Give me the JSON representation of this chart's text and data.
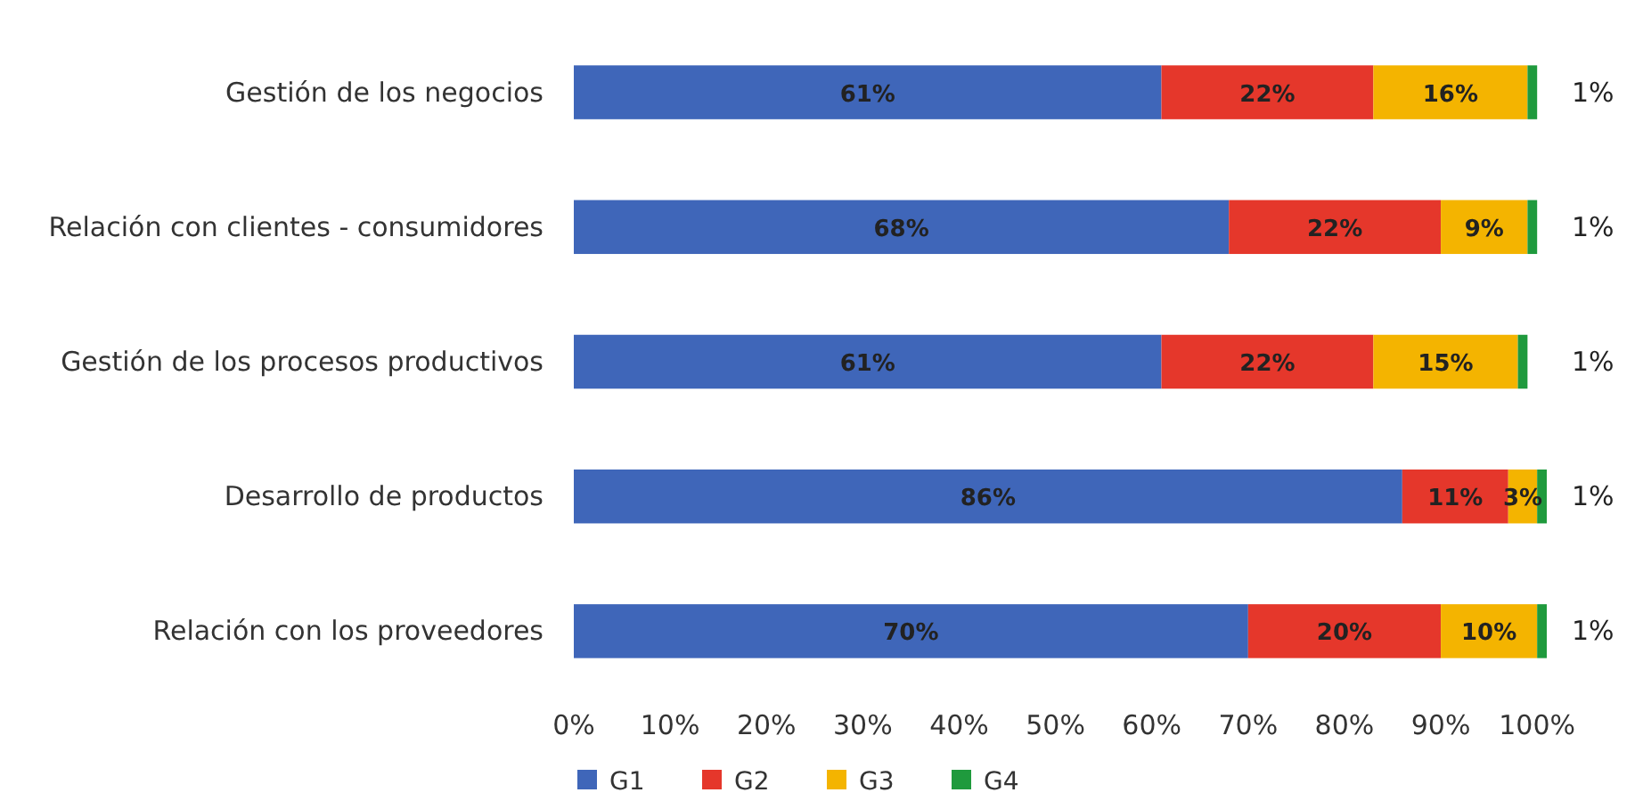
{
  "chart_data": {
    "type": "bar",
    "orientation": "horizontal",
    "stacked": true,
    "legend": "bottom left",
    "categories": [
      "Gestión de los negocios",
      "Relación con clientes - consumidores",
      "Gestión de los procesos productivos",
      "Desarrollo de productos",
      "Relación con los proveedores"
    ],
    "xlim": [
      0,
      101
    ],
    "xticks": [
      {
        "value": 0,
        "label": "0%"
      },
      {
        "value": 10,
        "label": "10%"
      },
      {
        "value": 20,
        "label": "20%"
      },
      {
        "value": 30,
        "label": "30%"
      },
      {
        "value": 40,
        "label": "40%"
      },
      {
        "value": 50,
        "label": "50%"
      },
      {
        "value": 60,
        "label": "60%"
      },
      {
        "value": 70,
        "label": "70%"
      },
      {
        "value": 80,
        "label": "80%"
      },
      {
        "value": 90,
        "label": "90%"
      },
      {
        "value": 100,
        "label": "100%"
      }
    ],
    "series": [
      {
        "name": "G1",
        "color": "#3f66b9",
        "values": [
          61,
          68,
          61,
          86,
          70
        ],
        "value_labels": [
          "61%",
          "68%",
          "61%",
          "86%",
          "70%"
        ]
      },
      {
        "name": "G2",
        "color": "#e5372b",
        "values": [
          22,
          22,
          22,
          11,
          20
        ],
        "value_labels": [
          "22%",
          "22%",
          "22%",
          "11%",
          "20%"
        ]
      },
      {
        "name": "G3",
        "color": "#f4b400",
        "values": [
          16,
          9,
          15,
          3,
          10
        ],
        "value_labels": [
          "16%",
          "9%",
          "15%",
          "3%",
          "10%"
        ]
      },
      {
        "name": "G4",
        "color": "#1f9a3d",
        "values": [
          1,
          1,
          1,
          1,
          1
        ],
        "value_labels": [
          "1%",
          "1%",
          "1%",
          "1%",
          "1%"
        ]
      }
    ]
  }
}
